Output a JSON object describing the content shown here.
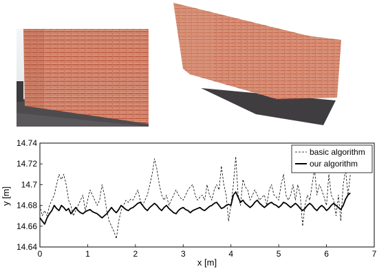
{
  "chart_data": {
    "type": "line",
    "title": "",
    "xlabel": "x [m]",
    "ylabel": "y [m]",
    "xlim": [
      0,
      7
    ],
    "ylim": [
      14.64,
      14.74
    ],
    "xticks": [
      "0",
      "1",
      "2",
      "3",
      "4",
      "5",
      "6",
      "7"
    ],
    "yticks": [
      "14.64",
      "14.66",
      "14.68",
      "14.7",
      "14.72",
      "14.74"
    ],
    "grid": false,
    "legend_position": "top-right",
    "series": [
      {
        "name": "basic algorithm",
        "style": "dashed",
        "x": [
          0.0,
          0.05,
          0.1,
          0.15,
          0.2,
          0.25,
          0.3,
          0.35,
          0.4,
          0.45,
          0.5,
          0.55,
          0.6,
          0.65,
          0.7,
          0.75,
          0.8,
          0.85,
          0.9,
          0.95,
          1.0,
          1.05,
          1.1,
          1.15,
          1.2,
          1.25,
          1.3,
          1.35,
          1.4,
          1.45,
          1.5,
          1.55,
          1.6,
          1.65,
          1.7,
          1.75,
          1.8,
          1.85,
          1.9,
          1.95,
          2.0,
          2.05,
          2.1,
          2.15,
          2.2,
          2.25,
          2.3,
          2.35,
          2.4,
          2.45,
          2.5,
          2.55,
          2.6,
          2.65,
          2.7,
          2.75,
          2.8,
          2.85,
          2.9,
          2.95,
          3.0,
          3.05,
          3.1,
          3.15,
          3.2,
          3.25,
          3.3,
          3.35,
          3.4,
          3.45,
          3.5,
          3.55,
          3.6,
          3.65,
          3.7,
          3.75,
          3.8,
          3.85,
          3.9,
          3.95,
          4.0,
          4.05,
          4.1,
          4.15,
          4.2,
          4.25,
          4.3,
          4.35,
          4.4,
          4.45,
          4.5,
          4.55,
          4.6,
          4.65,
          4.7,
          4.75,
          4.8,
          4.85,
          4.9,
          4.95,
          5.0,
          5.05,
          5.1,
          5.15,
          5.2,
          5.25,
          5.3,
          5.35,
          5.4,
          5.45,
          5.5,
          5.55,
          5.6,
          5.65,
          5.7,
          5.75,
          5.8,
          5.85,
          5.9,
          5.95,
          6.0,
          6.05,
          6.1,
          6.15,
          6.2,
          6.25,
          6.3,
          6.35,
          6.4,
          6.45,
          6.5
        ],
        "values": [
          14.68,
          14.67,
          14.675,
          14.67,
          14.68,
          14.685,
          14.69,
          14.7,
          14.71,
          14.705,
          14.71,
          14.7,
          14.685,
          14.68,
          14.67,
          14.675,
          14.68,
          14.685,
          14.69,
          14.675,
          14.685,
          14.695,
          14.69,
          14.685,
          14.68,
          14.685,
          14.7,
          14.69,
          14.675,
          14.665,
          14.66,
          14.655,
          14.648,
          14.665,
          14.675,
          14.68,
          14.685,
          14.683,
          14.686,
          14.685,
          14.69,
          14.695,
          14.685,
          14.68,
          14.685,
          14.69,
          14.7,
          14.71,
          14.725,
          14.715,
          14.7,
          14.69,
          14.685,
          14.69,
          14.68,
          14.685,
          14.69,
          14.695,
          14.69,
          14.687,
          14.685,
          14.69,
          14.695,
          14.698,
          14.7,
          14.69,
          14.685,
          14.688,
          14.69,
          14.685,
          14.7,
          14.69,
          14.685,
          14.695,
          14.7,
          14.695,
          14.718,
          14.7,
          14.69,
          14.665,
          14.68,
          14.7,
          14.727,
          14.69,
          14.68,
          14.705,
          14.698,
          14.695,
          14.685,
          14.69,
          14.695,
          14.69,
          14.685,
          14.688,
          14.69,
          14.68,
          14.695,
          14.7,
          14.69,
          14.688,
          14.685,
          14.7,
          14.71,
          14.69,
          14.685,
          14.69,
          14.7,
          14.685,
          14.7,
          14.69,
          14.66,
          14.68,
          14.69,
          14.685,
          14.7,
          14.715,
          14.69,
          14.7,
          14.695,
          14.688,
          14.68,
          14.71,
          14.69,
          14.685,
          14.67,
          14.69,
          14.665,
          14.7,
          14.715,
          14.69,
          14.71
        ]
      },
      {
        "name": "our algorithm",
        "style": "solid",
        "x": [
          0.0,
          0.05,
          0.1,
          0.15,
          0.2,
          0.25,
          0.3,
          0.35,
          0.4,
          0.45,
          0.5,
          0.55,
          0.6,
          0.65,
          0.7,
          0.75,
          0.8,
          0.85,
          0.9,
          0.95,
          1.0,
          1.05,
          1.1,
          1.15,
          1.2,
          1.25,
          1.3,
          1.35,
          1.4,
          1.45,
          1.5,
          1.55,
          1.6,
          1.65,
          1.7,
          1.75,
          1.8,
          1.85,
          1.9,
          1.95,
          2.0,
          2.05,
          2.1,
          2.15,
          2.2,
          2.25,
          2.3,
          2.35,
          2.4,
          2.45,
          2.5,
          2.55,
          2.6,
          2.65,
          2.7,
          2.75,
          2.8,
          2.85,
          2.9,
          2.95,
          3.0,
          3.05,
          3.1,
          3.15,
          3.2,
          3.25,
          3.3,
          3.35,
          3.4,
          3.45,
          3.5,
          3.55,
          3.6,
          3.65,
          3.7,
          3.75,
          3.8,
          3.85,
          3.9,
          3.95,
          4.0,
          4.05,
          4.1,
          4.15,
          4.2,
          4.25,
          4.3,
          4.35,
          4.4,
          4.45,
          4.5,
          4.55,
          4.6,
          4.65,
          4.7,
          4.75,
          4.8,
          4.85,
          4.9,
          4.95,
          5.0,
          5.05,
          5.1,
          5.15,
          5.2,
          5.25,
          5.3,
          5.35,
          5.4,
          5.45,
          5.5,
          5.55,
          5.6,
          5.65,
          5.7,
          5.75,
          5.8,
          5.85,
          5.9,
          5.95,
          6.0,
          6.05,
          6.1,
          6.15,
          6.2,
          6.25,
          6.3,
          6.35,
          6.4,
          6.45,
          6.5
        ],
        "values": [
          14.668,
          14.665,
          14.662,
          14.668,
          14.672,
          14.675,
          14.68,
          14.677,
          14.675,
          14.68,
          14.678,
          14.675,
          14.677,
          14.672,
          14.675,
          14.678,
          14.675,
          14.673,
          14.672,
          14.674,
          14.675,
          14.676,
          14.674,
          14.673,
          14.672,
          14.67,
          14.668,
          14.67,
          14.672,
          14.675,
          14.678,
          14.675,
          14.673,
          14.676,
          14.68,
          14.678,
          14.676,
          14.675,
          14.677,
          14.678,
          14.68,
          14.682,
          14.683,
          14.68,
          14.677,
          14.675,
          14.678,
          14.68,
          14.682,
          14.68,
          14.677,
          14.675,
          14.678,
          14.68,
          14.677,
          14.675,
          14.673,
          14.672,
          14.675,
          14.677,
          14.678,
          14.676,
          14.675,
          14.673,
          14.675,
          14.676,
          14.677,
          14.678,
          14.676,
          14.675,
          14.677,
          14.679,
          14.68,
          14.682,
          14.683,
          14.68,
          14.677,
          14.678,
          14.68,
          14.681,
          14.68,
          14.69,
          14.693,
          14.688,
          14.683,
          14.685,
          14.682,
          14.68,
          14.678,
          14.68,
          14.683,
          14.685,
          14.682,
          14.68,
          14.678,
          14.68,
          14.682,
          14.683,
          14.681,
          14.68,
          14.678,
          14.68,
          14.683,
          14.682,
          14.68,
          14.678,
          14.68,
          14.682,
          14.68,
          14.677,
          14.675,
          14.677,
          14.68,
          14.682,
          14.68,
          14.677,
          14.675,
          14.678,
          14.68,
          14.678,
          14.675,
          14.677,
          14.68,
          14.682,
          14.68,
          14.678,
          14.676,
          14.68,
          14.686,
          14.69,
          14.692
        ]
      }
    ]
  },
  "photos": [
    {
      "description_icon": "brick-wall-photo"
    },
    {
      "description_icon": "brick-wall-rectified-photo"
    }
  ],
  "colors": {
    "brick": "#c2674e",
    "brick_light": "#d88a72",
    "mortar": "#e6b9a6",
    "ground": "#4e4b4e",
    "sky": "#eef2f3",
    "line": "#000000"
  }
}
